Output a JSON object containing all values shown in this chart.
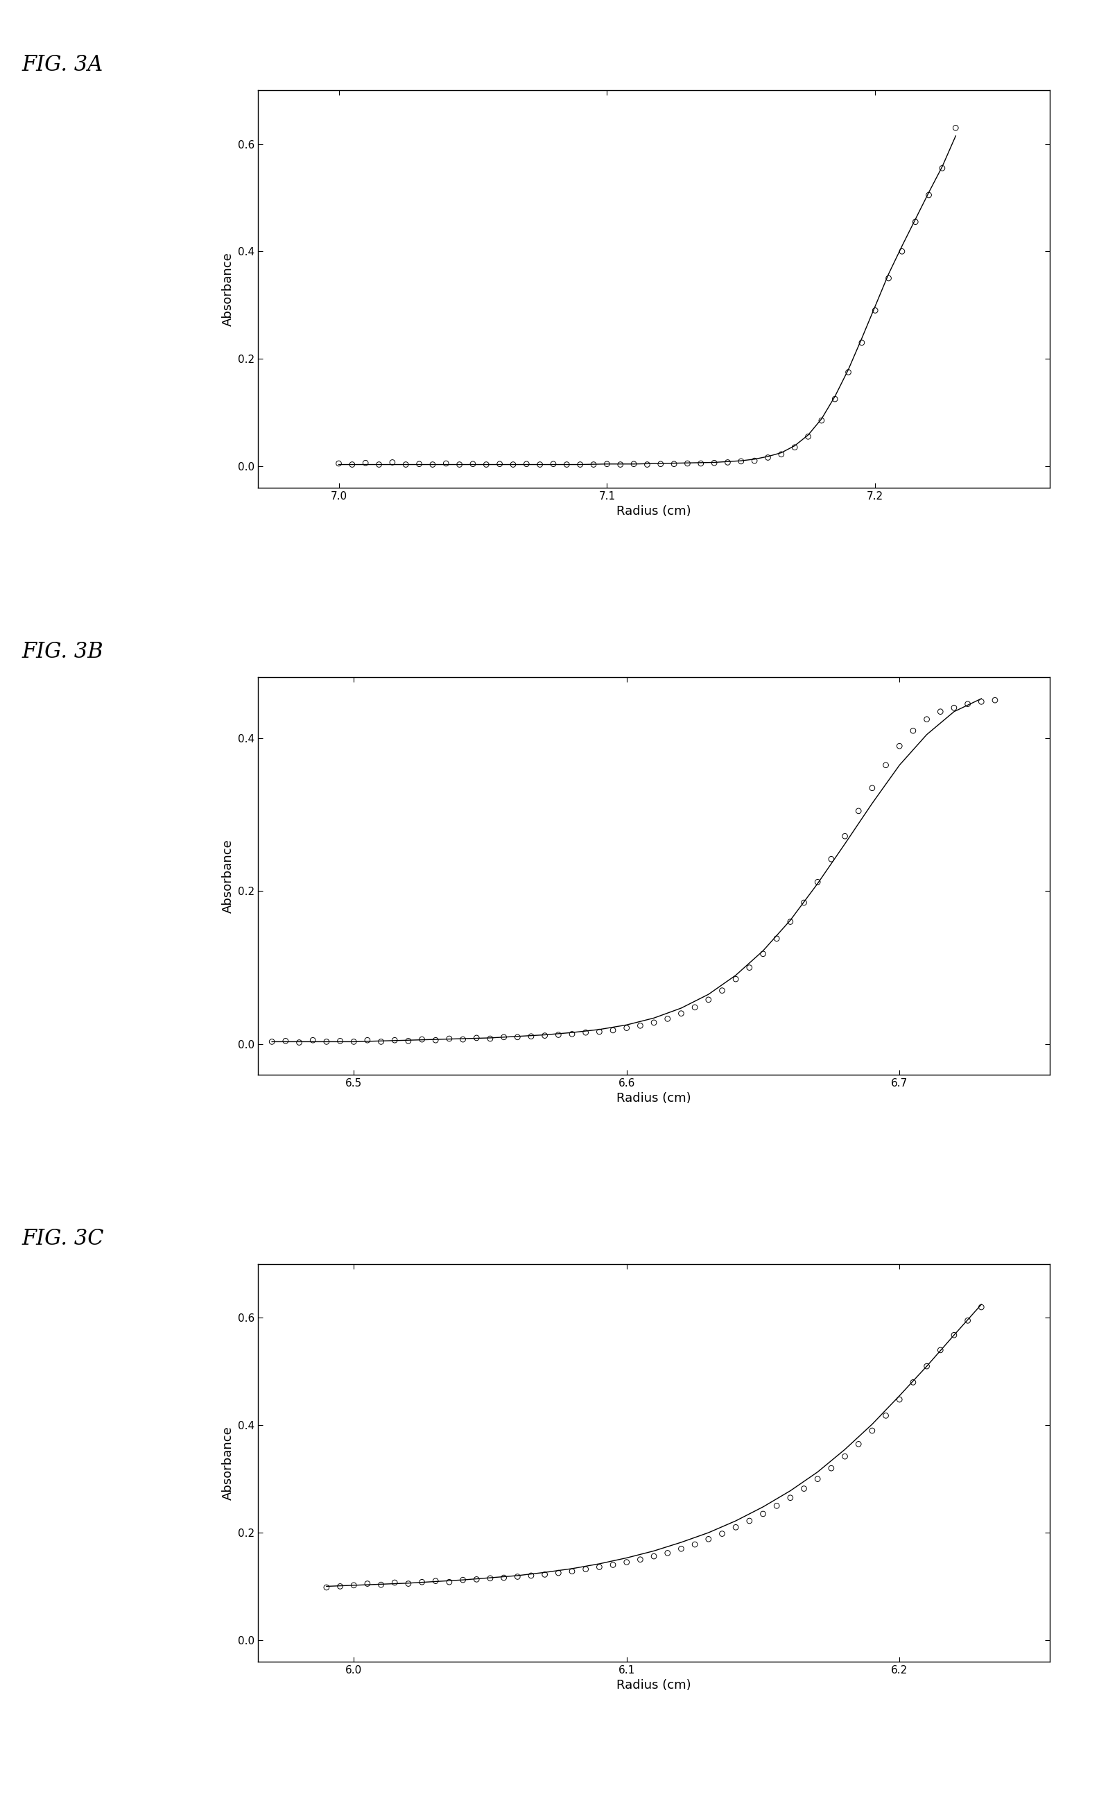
{
  "fig_label_fontsize": 22,
  "fig_label_style": "italic",
  "axis_label_fontsize": 13,
  "tick_label_fontsize": 11,
  "line_color": "black",
  "marker_color": "none",
  "marker_edge_color": "black",
  "marker_size": 5.5,
  "line_width": 1.0,
  "panel_A": {
    "label": "FIG. 3A",
    "xlabel": "Radius (cm)",
    "ylabel": "Absorbance",
    "xlim": [
      6.97,
      7.265
    ],
    "ylim": [
      -0.04,
      0.7
    ],
    "xticks": [
      7.0,
      7.1,
      7.2
    ],
    "yticks": [
      0.0,
      0.2,
      0.4,
      0.6
    ],
    "x_data": [
      7.0,
      7.005,
      7.01,
      7.015,
      7.02,
      7.025,
      7.03,
      7.035,
      7.04,
      7.045,
      7.05,
      7.055,
      7.06,
      7.065,
      7.07,
      7.075,
      7.08,
      7.085,
      7.09,
      7.095,
      7.1,
      7.105,
      7.11,
      7.115,
      7.12,
      7.125,
      7.13,
      7.135,
      7.14,
      7.145,
      7.15,
      7.155,
      7.16,
      7.165,
      7.17,
      7.175,
      7.18,
      7.185,
      7.19,
      7.195,
      7.2,
      7.205,
      7.21,
      7.215,
      7.22,
      7.225,
      7.23
    ],
    "y_data": [
      0.005,
      0.003,
      0.006,
      0.003,
      0.007,
      0.003,
      0.004,
      0.003,
      0.005,
      0.003,
      0.004,
      0.003,
      0.004,
      0.003,
      0.004,
      0.003,
      0.004,
      0.003,
      0.003,
      0.003,
      0.004,
      0.003,
      0.004,
      0.003,
      0.004,
      0.004,
      0.005,
      0.005,
      0.006,
      0.007,
      0.009,
      0.01,
      0.016,
      0.022,
      0.035,
      0.055,
      0.085,
      0.125,
      0.175,
      0.23,
      0.29,
      0.35,
      0.4,
      0.455,
      0.505,
      0.555,
      0.63
    ],
    "curve_x": [
      7.0,
      7.01,
      7.02,
      7.03,
      7.04,
      7.05,
      7.06,
      7.07,
      7.08,
      7.09,
      7.1,
      7.11,
      7.12,
      7.13,
      7.14,
      7.15,
      7.155,
      7.16,
      7.165,
      7.17,
      7.175,
      7.18,
      7.185,
      7.19,
      7.195,
      7.2,
      7.205,
      7.21,
      7.215,
      7.22,
      7.225,
      7.23
    ],
    "curve_y": [
      0.003,
      0.003,
      0.003,
      0.003,
      0.003,
      0.003,
      0.003,
      0.003,
      0.003,
      0.003,
      0.004,
      0.004,
      0.005,
      0.006,
      0.007,
      0.01,
      0.013,
      0.018,
      0.025,
      0.038,
      0.058,
      0.088,
      0.13,
      0.18,
      0.238,
      0.298,
      0.358,
      0.41,
      0.46,
      0.51,
      0.558,
      0.615
    ]
  },
  "panel_B": {
    "label": "FIG. 3B",
    "xlabel": "Radius (cm)",
    "ylabel": "Absorbance",
    "xlim": [
      6.465,
      6.755
    ],
    "ylim": [
      -0.04,
      0.48
    ],
    "xticks": [
      6.5,
      6.6,
      6.7
    ],
    "yticks": [
      0.0,
      0.2,
      0.4
    ],
    "x_data": [
      6.47,
      6.475,
      6.48,
      6.485,
      6.49,
      6.495,
      6.5,
      6.505,
      6.51,
      6.515,
      6.52,
      6.525,
      6.53,
      6.535,
      6.54,
      6.545,
      6.55,
      6.555,
      6.56,
      6.565,
      6.57,
      6.575,
      6.58,
      6.585,
      6.59,
      6.595,
      6.6,
      6.605,
      6.61,
      6.615,
      6.62,
      6.625,
      6.63,
      6.635,
      6.64,
      6.645,
      6.65,
      6.655,
      6.66,
      6.665,
      6.67,
      6.675,
      6.68,
      6.685,
      6.69,
      6.695,
      6.7,
      6.705,
      6.71,
      6.715,
      6.72,
      6.725,
      6.73,
      6.735
    ],
    "y_data": [
      0.003,
      0.004,
      0.002,
      0.005,
      0.003,
      0.004,
      0.003,
      0.005,
      0.003,
      0.005,
      0.004,
      0.006,
      0.005,
      0.007,
      0.006,
      0.008,
      0.007,
      0.009,
      0.009,
      0.01,
      0.011,
      0.012,
      0.013,
      0.015,
      0.016,
      0.018,
      0.021,
      0.024,
      0.028,
      0.033,
      0.04,
      0.048,
      0.058,
      0.07,
      0.085,
      0.1,
      0.118,
      0.138,
      0.16,
      0.185,
      0.212,
      0.242,
      0.272,
      0.305,
      0.335,
      0.365,
      0.39,
      0.41,
      0.425,
      0.435,
      0.44,
      0.445,
      0.448,
      0.45
    ],
    "curve_x": [
      6.47,
      6.48,
      6.49,
      6.5,
      6.51,
      6.52,
      6.53,
      6.54,
      6.55,
      6.56,
      6.57,
      6.58,
      6.59,
      6.6,
      6.61,
      6.62,
      6.63,
      6.64,
      6.65,
      6.66,
      6.67,
      6.68,
      6.69,
      6.7,
      6.71,
      6.72,
      6.73
    ],
    "curve_y": [
      0.003,
      0.003,
      0.003,
      0.003,
      0.004,
      0.005,
      0.006,
      0.007,
      0.008,
      0.01,
      0.012,
      0.015,
      0.019,
      0.025,
      0.034,
      0.047,
      0.065,
      0.09,
      0.122,
      0.162,
      0.21,
      0.262,
      0.315,
      0.365,
      0.405,
      0.435,
      0.452
    ]
  },
  "panel_C": {
    "label": "FIG. 3C",
    "xlabel": "Radius (cm)",
    "ylabel": "Absorbance",
    "xlim": [
      5.965,
      6.255
    ],
    "ylim": [
      -0.04,
      0.7
    ],
    "xticks": [
      6.0,
      6.1,
      6.2
    ],
    "yticks": [
      0.0,
      0.2,
      0.4,
      0.6
    ],
    "x_data": [
      5.99,
      5.995,
      6.0,
      6.005,
      6.01,
      6.015,
      6.02,
      6.025,
      6.03,
      6.035,
      6.04,
      6.045,
      6.05,
      6.055,
      6.06,
      6.065,
      6.07,
      6.075,
      6.08,
      6.085,
      6.09,
      6.095,
      6.1,
      6.105,
      6.11,
      6.115,
      6.12,
      6.125,
      6.13,
      6.135,
      6.14,
      6.145,
      6.15,
      6.155,
      6.16,
      6.165,
      6.17,
      6.175,
      6.18,
      6.185,
      6.19,
      6.195,
      6.2,
      6.205,
      6.21,
      6.215,
      6.22,
      6.225,
      6.23
    ],
    "y_data": [
      0.098,
      0.1,
      0.102,
      0.105,
      0.103,
      0.107,
      0.105,
      0.108,
      0.11,
      0.108,
      0.112,
      0.113,
      0.115,
      0.116,
      0.118,
      0.12,
      0.122,
      0.125,
      0.128,
      0.132,
      0.136,
      0.14,
      0.145,
      0.15,
      0.156,
      0.162,
      0.17,
      0.178,
      0.188,
      0.198,
      0.21,
      0.222,
      0.235,
      0.25,
      0.265,
      0.282,
      0.3,
      0.32,
      0.342,
      0.365,
      0.39,
      0.418,
      0.448,
      0.48,
      0.51,
      0.54,
      0.568,
      0.595,
      0.62
    ],
    "curve_x": [
      5.99,
      6.0,
      6.01,
      6.02,
      6.03,
      6.04,
      6.05,
      6.06,
      6.07,
      6.08,
      6.09,
      6.1,
      6.11,
      6.12,
      6.13,
      6.14,
      6.15,
      6.16,
      6.17,
      6.18,
      6.19,
      6.2,
      6.21,
      6.22,
      6.23
    ],
    "curve_y": [
      0.1,
      0.102,
      0.104,
      0.106,
      0.109,
      0.112,
      0.116,
      0.12,
      0.126,
      0.133,
      0.142,
      0.153,
      0.166,
      0.182,
      0.2,
      0.222,
      0.248,
      0.278,
      0.313,
      0.355,
      0.402,
      0.455,
      0.51,
      0.568,
      0.625
    ]
  }
}
